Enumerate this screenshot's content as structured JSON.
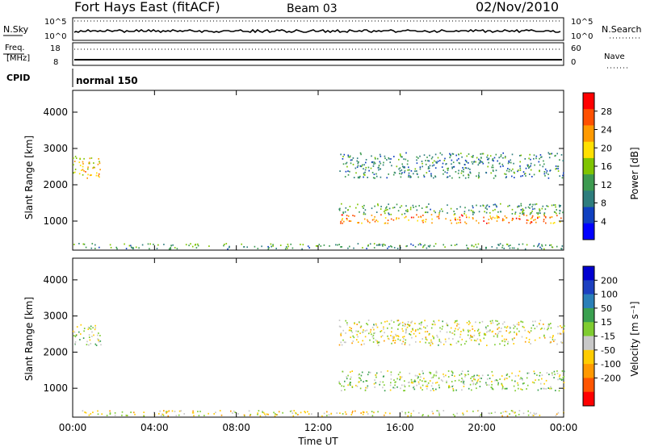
{
  "header": {
    "station": "Fort Hays East (fitACF)",
    "beam": "Beam 03",
    "date": "02/Nov/2010"
  },
  "aux_panels": {
    "nsky_label": "N.Sky",
    "nsky_ticks": [
      "10^5",
      "10^0"
    ],
    "nsearch_label": "N.Search",
    "nsearch_ticks": [
      "10^5",
      "10^0"
    ],
    "freq_label_1": "Freq.",
    "freq_label_2": "[MHz]",
    "freq_ticks": [
      "18",
      "8"
    ],
    "nave_label": "Nave",
    "nave_ticks": [
      "60",
      "0"
    ],
    "cpid_label": "CPID",
    "cpid_value": "normal 150"
  },
  "colors": {
    "power_scale": [
      "#0000ff",
      "#1040c0",
      "#2e7d7d",
      "#3c9a50",
      "#7fc400",
      "#ffe000",
      "#ff9a00",
      "#ff5000",
      "#ff0000"
    ],
    "velocity_scale": [
      "#0000d0",
      "#1c40c0",
      "#2a7fb8",
      "#3aa050",
      "#7fcc30",
      "#c8c8c8",
      "#ffcc00",
      "#ff9900",
      "#ff5500",
      "#ff0000"
    ]
  },
  "chart_data": [
    {
      "type": "heatmap",
      "title": "Power",
      "xlabel": "",
      "ylabel": "Slant Range [km]",
      "xlim": [
        0,
        24
      ],
      "ylim": [
        200,
        4600
      ],
      "x_ticks": [],
      "y_ticks": [
        "1000",
        "2000",
        "3000",
        "4000"
      ],
      "y_tick_values": [
        1000,
        2000,
        3000,
        4000
      ],
      "colorbar": {
        "label": "Power [dB]",
        "range": [
          0,
          32
        ],
        "ticks": [
          "4",
          "8",
          "12",
          "16",
          "20",
          "24",
          "28"
        ],
        "tick_values": [
          4,
          8,
          12,
          16,
          20,
          24,
          28
        ]
      },
      "regions": [
        {
          "t": [
            0.0,
            1.4
          ],
          "r": [
            2200,
            2800
          ],
          "value": 20
        },
        {
          "t": [
            0.0,
            24.0
          ],
          "r": [
            250,
            400
          ],
          "value": 12
        },
        {
          "t": [
            13.0,
            24.0
          ],
          "r": [
            950,
            1200
          ],
          "value": 24
        },
        {
          "t": [
            13.0,
            24.0
          ],
          "r": [
            1200,
            1500
          ],
          "value": 12
        },
        {
          "t": [
            13.0,
            24.0
          ],
          "r": [
            2200,
            2900
          ],
          "value": 10
        }
      ]
    },
    {
      "type": "heatmap",
      "title": "Velocity",
      "xlabel": "Time UT",
      "ylabel": "Slant Range [km]",
      "xlim": [
        0,
        24
      ],
      "ylim": [
        200,
        4600
      ],
      "x_ticks": [
        "00:00",
        "04:00",
        "08:00",
        "12:00",
        "16:00",
        "20:00",
        "00:00"
      ],
      "x_tick_values": [
        0,
        4,
        8,
        12,
        16,
        20,
        24
      ],
      "y_ticks": [
        "1000",
        "2000",
        "3000",
        "4000"
      ],
      "y_tick_values": [
        1000,
        2000,
        3000,
        4000
      ],
      "colorbar": {
        "label": "Velocity [m s⁻¹]",
        "range": [
          -250,
          250
        ],
        "ticks": [
          "200",
          "100",
          "50",
          "15",
          "-15",
          "-50",
          "-100",
          "-200"
        ],
        "tick_values": [
          200,
          100,
          50,
          15,
          -15,
          -50,
          -100,
          -200
        ]
      },
      "regions": [
        {
          "t": [
            0.0,
            1.4
          ],
          "r": [
            2200,
            2800
          ],
          "value": 0
        },
        {
          "t": [
            0.0,
            24.0
          ],
          "r": [
            250,
            400
          ],
          "value": -40
        },
        {
          "t": [
            13.0,
            24.0
          ],
          "r": [
            950,
            1200
          ],
          "value": 0
        },
        {
          "t": [
            13.0,
            24.0
          ],
          "r": [
            1200,
            1500
          ],
          "value": 0
        },
        {
          "t": [
            13.0,
            24.0
          ],
          "r": [
            2200,
            2900
          ],
          "value": -30
        }
      ]
    }
  ]
}
